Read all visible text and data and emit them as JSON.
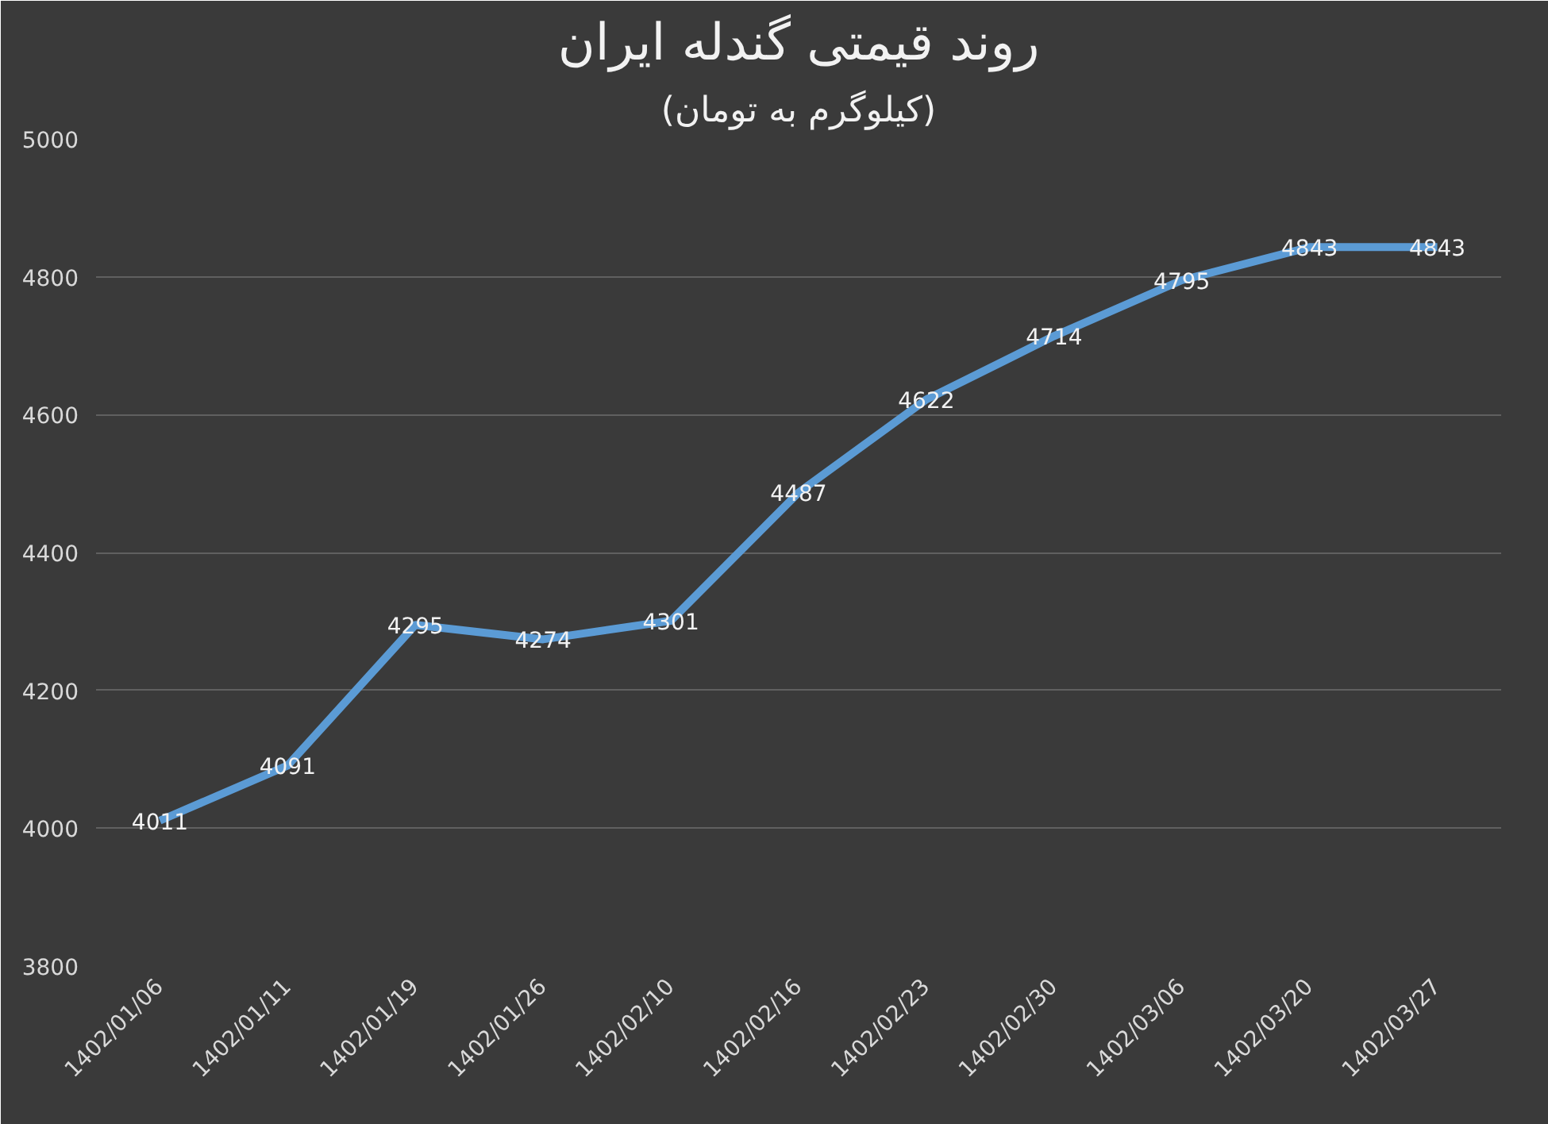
{
  "chart_data": {
    "type": "line",
    "title": "روند قیمتی گندله ایران",
    "subtitle": "(کیلوگرم به تومان)",
    "categories": [
      "1402/01/06",
      "1402/01/11",
      "1402/01/19",
      "1402/01/26",
      "1402/02/10",
      "1402/02/16",
      "1402/02/23",
      "1402/02/30",
      "1402/03/06",
      "1402/03/20",
      "1402/03/27"
    ],
    "series": [
      {
        "color": "#5b9bd5",
        "values": [
          4011,
          4091,
          4295,
          4274,
          4301,
          4487,
          4622,
          4714,
          4795,
          4843,
          4843
        ]
      }
    ],
    "ylim": [
      3800,
      5000
    ],
    "yticks": [
      3800,
      4000,
      4200,
      4400,
      4600,
      4800,
      5000
    ],
    "grid": "y",
    "data_labels": true,
    "marker": "none",
    "line_style": "solid"
  }
}
